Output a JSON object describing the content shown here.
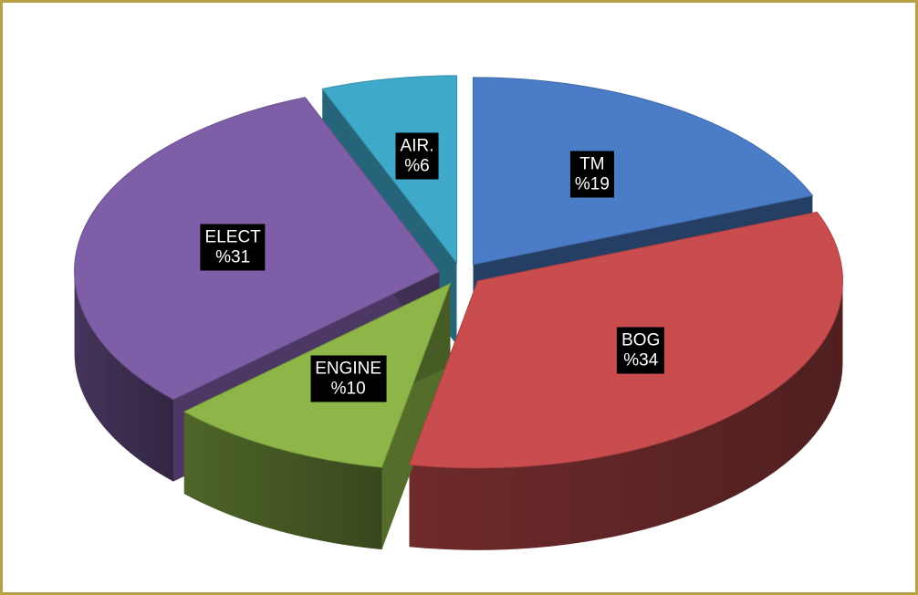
{
  "chart_data": {
    "type": "pie",
    "style": "3d-exploded",
    "slices": [
      {
        "name": "TM",
        "value": 19,
        "label_line1": "TM",
        "label_line2": "%19",
        "color": "#4a7cc7"
      },
      {
        "name": "BOG",
        "value": 34,
        "label_line1": "BOG",
        "label_line2": "%34",
        "color": "#c94d4f"
      },
      {
        "name": "ENGINE",
        "value": 10,
        "label_line1": "ENGINE",
        "label_line2": "%10",
        "color": "#8db548"
      },
      {
        "name": "ELECT",
        "value": 31,
        "label_line1": "ELECT",
        "label_line2": "%31",
        "color": "#7e5ea6"
      },
      {
        "name": "AIR.",
        "value": 6,
        "label_line1": "AIR.",
        "label_line2": "%6",
        "color": "#3fa9c9"
      }
    ],
    "title": "",
    "legend": "none"
  }
}
